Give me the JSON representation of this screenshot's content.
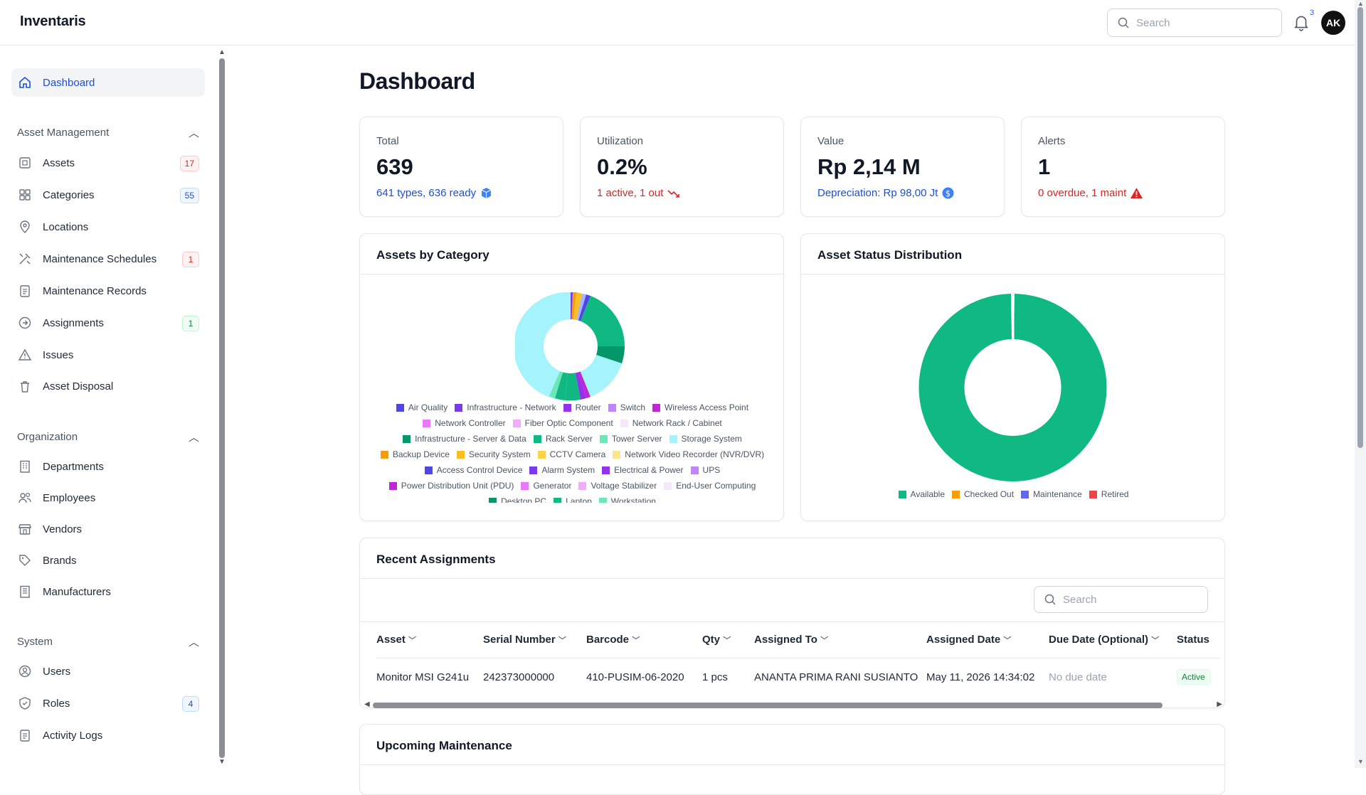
{
  "app": {
    "title": "Inventaris",
    "search_placeholder": "Search",
    "notif_count": "3",
    "avatar_initials": "AK"
  },
  "sidebar": {
    "dashboard": "Dashboard",
    "sections": {
      "asset_management": "Asset Management",
      "organization": "Organization",
      "system": "System"
    },
    "asset_items": [
      {
        "label": "Assets",
        "badge": "17",
        "icon": "cube-icon"
      },
      {
        "label": "Categories",
        "badge": "55",
        "icon": "grid-icon"
      },
      {
        "label": "Locations",
        "badge": "",
        "icon": "map-pin-icon"
      },
      {
        "label": "Maintenance Schedules",
        "badge": "1",
        "icon": "tools-icon"
      },
      {
        "label": "Maintenance Records",
        "badge": "",
        "icon": "clipboard-icon"
      },
      {
        "label": "Assignments",
        "badge": "1",
        "icon": "arrow-circle-icon"
      },
      {
        "label": "Issues",
        "badge": "",
        "icon": "warning-icon"
      },
      {
        "label": "Asset Disposal",
        "badge": "",
        "icon": "trash-icon"
      }
    ],
    "org_items": [
      {
        "label": "Departments",
        "icon": "building-icon"
      },
      {
        "label": "Employees",
        "icon": "users-icon"
      },
      {
        "label": "Vendors",
        "icon": "store-icon"
      },
      {
        "label": "Brands",
        "icon": "tag-icon"
      },
      {
        "label": "Manufacturers",
        "icon": "factory-icon"
      }
    ],
    "system_items": [
      {
        "label": "Users",
        "badge": "",
        "icon": "user-circle-icon"
      },
      {
        "label": "Roles",
        "badge": "4",
        "icon": "shield-icon"
      },
      {
        "label": "Activity Logs",
        "badge": "",
        "icon": "log-icon"
      }
    ]
  },
  "main": {
    "title": "Dashboard",
    "stats": [
      {
        "label": "Total",
        "value": "639",
        "sub": "641 types, 636 ready",
        "color": "#1d4ed8"
      },
      {
        "label": "Utilization",
        "value": "0.2%",
        "sub": "1 active, 1 out",
        "color": "#dc2626"
      },
      {
        "label": "Value",
        "value": "Rp 2,14 M",
        "sub": "Depreciation: Rp 98,00 Jt",
        "color": "#1d4ed8"
      },
      {
        "label": "Alerts",
        "value": "1",
        "sub": "0 overdue, 1 maint",
        "color": "#dc2626"
      }
    ],
    "category_chart": {
      "title": "Assets by Category",
      "legend": [
        {
          "name": "Air Quality",
          "color": "#4f46e5"
        },
        {
          "name": "Infrastructure - Network",
          "color": "#7c3aed"
        },
        {
          "name": "Router",
          "color": "#9333ea"
        },
        {
          "name": "Switch",
          "color": "#c084fc"
        },
        {
          "name": "Wireless Access Point",
          "color": "#c026d3"
        },
        {
          "name": "Network Controller",
          "color": "#e879f9"
        },
        {
          "name": "Fiber Optic Component",
          "color": "#f0abfc"
        },
        {
          "name": "Network Rack / Cabinet",
          "color": "#f5e8fb"
        },
        {
          "name": "Infrastructure - Server & Data",
          "color": "#059669"
        },
        {
          "name": "Rack Server",
          "color": "#10b981"
        },
        {
          "name": "Tower Server",
          "color": "#6ee7b7"
        },
        {
          "name": "Storage System",
          "color": "#a5f3fc"
        },
        {
          "name": "Backup Device",
          "color": "#f59e0b"
        },
        {
          "name": "Security System",
          "color": "#fbbf24"
        },
        {
          "name": "CCTV Camera",
          "color": "#fcd34d"
        },
        {
          "name": "Network Video Recorder (NVR/DVR)",
          "color": "#fde68a"
        },
        {
          "name": "Access Control Device",
          "color": "#4f46e5"
        },
        {
          "name": "Alarm System",
          "color": "#7c3aed"
        },
        {
          "name": "Electrical & Power",
          "color": "#9333ea"
        },
        {
          "name": "UPS",
          "color": "#c084fc"
        },
        {
          "name": "Power Distribution Unit (PDU)",
          "color": "#c026d3"
        },
        {
          "name": "Generator",
          "color": "#e879f9"
        },
        {
          "name": "Voltage Stabilizer",
          "color": "#f0abfc"
        },
        {
          "name": "End-User Computing",
          "color": "#f5e8fb"
        },
        {
          "name": "Desktop PC",
          "color": "#059669"
        },
        {
          "name": "Laptop",
          "color": "#10b981"
        },
        {
          "name": "Workstation",
          "color": "#6ee7b7"
        }
      ]
    },
    "status_chart": {
      "title": "Asset Status Distribution",
      "legend": [
        {
          "name": "Available",
          "color": "#10b981"
        },
        {
          "name": "Checked Out",
          "color": "#f59e0b"
        },
        {
          "name": "Maintenance",
          "color": "#6366f1"
        },
        {
          "name": "Retired",
          "color": "#ef4444"
        }
      ]
    },
    "assignments": {
      "title": "Recent Assignments",
      "search_placeholder": "Search",
      "columns": [
        "Asset",
        "Serial Number",
        "Barcode",
        "Qty",
        "Assigned To",
        "Assigned Date",
        "Due Date (Optional)",
        "Status"
      ],
      "rows": [
        [
          "Monitor MSI G241u",
          "242373000000",
          "410-PUSIM-06-2020",
          "1 pcs",
          "ANANTA PRIMA RANI SUSIANTO",
          "May 11, 2026 14:34:02",
          "No due date",
          "Active"
        ]
      ]
    },
    "maintenance": {
      "title": "Upcoming Maintenance"
    }
  }
}
